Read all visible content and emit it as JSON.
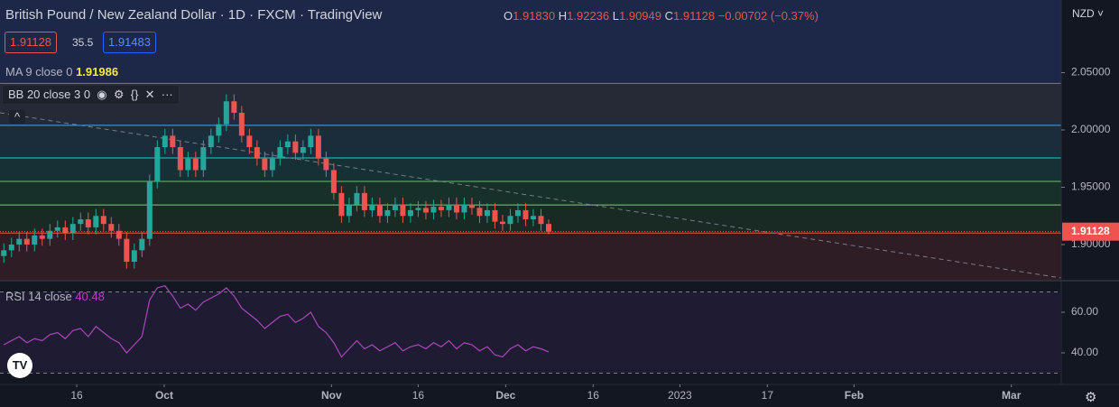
{
  "header": {
    "title": "British Pound / New Zealand Dollar · 1D · FXCM · TradingView",
    "o_label": "O",
    "o": "1.91830",
    "h_label": "H",
    "h": "1.92236",
    "l_label": "L",
    "l": "1.90949",
    "c_label": "C",
    "c": "1.91128",
    "change": "−0.00702 (−0.37%)",
    "sell": "1.91128",
    "spread": "35.5",
    "buy": "1.91483",
    "ma_label": "MA 9 close 0",
    "ma_value": "1.91986",
    "bb_label": "BB 20 close 3 0",
    "currency": "NZD"
  },
  "chart_data": {
    "type": "candlestick",
    "open": [
      1.89,
      1.895,
      1.9,
      1.905,
      1.9,
      1.908,
      1.905,
      1.912,
      1.915,
      1.91,
      1.918,
      1.922,
      1.915,
      1.925,
      1.918,
      1.912,
      1.905,
      1.885,
      1.895,
      1.905,
      1.955,
      1.985,
      1.995,
      1.985,
      1.965,
      1.975,
      1.965,
      1.985,
      1.995,
      2.005,
      2.025,
      2.015,
      1.995,
      1.985,
      1.975,
      1.965,
      1.975,
      1.985,
      1.99,
      1.98,
      1.985,
      1.995,
      1.975,
      1.965,
      1.945,
      1.925,
      1.935,
      1.945,
      1.93,
      1.935,
      1.925,
      1.93,
      1.935,
      1.925,
      1.93,
      1.932,
      1.928,
      1.933,
      1.93,
      1.935,
      1.928,
      1.935,
      1.932,
      1.925,
      1.93,
      1.92,
      1.918,
      1.925,
      1.93,
      1.922,
      1.925,
      1.918
    ],
    "high": [
      1.901,
      1.906,
      1.911,
      1.911,
      1.914,
      1.914,
      1.918,
      1.921,
      1.921,
      1.924,
      1.928,
      1.928,
      1.931,
      1.931,
      1.924,
      1.918,
      1.911,
      1.901,
      1.911,
      1.961,
      1.991,
      2.001,
      2.001,
      1.991,
      1.981,
      1.981,
      1.991,
      2.001,
      2.011,
      2.031,
      2.031,
      2.021,
      2.001,
      1.991,
      1.981,
      1.981,
      1.991,
      1.996,
      1.996,
      1.991,
      2.001,
      2.001,
      1.981,
      1.971,
      1.951,
      1.941,
      1.951,
      1.951,
      1.941,
      1.941,
      1.936,
      1.941,
      1.941,
      1.936,
      1.938,
      1.938,
      1.939,
      1.939,
      1.941,
      1.941,
      1.941,
      1.941,
      1.938,
      1.936,
      1.936,
      1.926,
      1.931,
      1.936,
      1.936,
      1.931,
      1.931,
      1.922
    ],
    "low": [
      1.884,
      1.889,
      1.894,
      1.894,
      1.894,
      1.899,
      1.899,
      1.906,
      1.904,
      1.904,
      1.912,
      1.909,
      1.909,
      1.912,
      1.906,
      1.899,
      1.879,
      1.879,
      1.889,
      1.899,
      1.949,
      1.979,
      1.979,
      1.959,
      1.959,
      1.959,
      1.959,
      1.979,
      1.989,
      1.999,
      2.009,
      1.989,
      1.979,
      1.969,
      1.959,
      1.959,
      1.969,
      1.979,
      1.974,
      1.974,
      1.979,
      1.969,
      1.959,
      1.939,
      1.919,
      1.919,
      1.929,
      1.924,
      1.924,
      1.919,
      1.919,
      1.924,
      1.919,
      1.919,
      1.924,
      1.922,
      1.922,
      1.924,
      1.924,
      1.922,
      1.922,
      1.926,
      1.919,
      1.919,
      1.914,
      1.912,
      1.912,
      1.919,
      1.916,
      1.916,
      1.912,
      1.909
    ],
    "close": [
      1.895,
      1.9,
      1.905,
      1.9,
      1.908,
      1.905,
      1.912,
      1.915,
      1.91,
      1.918,
      1.922,
      1.915,
      1.925,
      1.918,
      1.912,
      1.905,
      1.885,
      1.895,
      1.905,
      1.955,
      1.985,
      1.995,
      1.985,
      1.965,
      1.975,
      1.965,
      1.985,
      1.995,
      2.005,
      2.025,
      2.015,
      1.995,
      1.985,
      1.975,
      1.965,
      1.975,
      1.985,
      1.99,
      1.98,
      1.985,
      1.995,
      1.975,
      1.965,
      1.945,
      1.925,
      1.935,
      1.945,
      1.93,
      1.935,
      1.925,
      1.93,
      1.935,
      1.925,
      1.93,
      1.932,
      1.928,
      1.933,
      1.93,
      1.935,
      1.928,
      1.935,
      1.932,
      1.925,
      1.93,
      1.92,
      1.918,
      1.925,
      1.93,
      1.922,
      1.925,
      1.918,
      1.91128
    ],
    "up_color": "#26a69a",
    "down_color": "#ef5350",
    "xlim": [
      -0.5,
      137.8
    ],
    "xticks": [
      {
        "value": 9.5,
        "label": "16"
      },
      {
        "value": 20.9,
        "label": "Oct"
      },
      {
        "value": 42.7,
        "label": "Nov"
      },
      {
        "value": 54,
        "label": "16"
      },
      {
        "value": 65.4,
        "label": "Dec"
      },
      {
        "value": 76.8,
        "label": "16"
      },
      {
        "value": 88.1,
        "label": "2023"
      },
      {
        "value": 99.5,
        "label": "17"
      },
      {
        "value": 110.8,
        "label": "Feb"
      },
      {
        "value": 131.3,
        "label": "Mar"
      }
    ],
    "ylim": [
      1.8693,
      2.1134
    ],
    "yticks": [
      {
        "value": 1.9,
        "label": "1.90000"
      },
      {
        "value": 1.95,
        "label": "1.95000"
      },
      {
        "value": 2.0,
        "label": "2.00000"
      },
      {
        "value": 2.05,
        "label": "2.05000"
      }
    ],
    "top_fill": "#1d2748",
    "levels": [
      {
        "value": 2.0407,
        "color": "#787b86",
        "fill": "#262a36"
      },
      {
        "value": 2.004,
        "color": "#42a5f5",
        "fill": "#1b2c3b"
      },
      {
        "value": 1.9756,
        "color": "#26c6da",
        "fill": "#163136"
      },
      {
        "value": 1.9551,
        "color": "#66bb6a",
        "fill": "#18302a"
      },
      {
        "value": 1.9346,
        "color": "#81c784",
        "fill": "#192a24"
      },
      {
        "value": 1.91,
        "color": "#ef5350",
        "fill": "#2f1d25"
      }
    ],
    "last_price": 1.91128,
    "last_price_label": "1.91128",
    "rsi": {
      "label": "RSI 14 close",
      "value_label": "40.48",
      "color": "#ab47bc",
      "fill": "#1f1b33",
      "ylim": [
        24.9,
        75.1
      ],
      "yticks": [
        {
          "value": 60,
          "label": "60.00"
        },
        {
          "value": 40,
          "label": "40.00"
        }
      ],
      "band": [
        30,
        70
      ],
      "values": [
        44,
        46,
        48,
        45,
        47,
        46,
        49,
        50,
        47,
        51,
        52,
        48,
        53,
        50,
        47,
        45,
        40,
        44,
        48,
        66,
        72,
        73,
        68,
        62,
        64,
        61,
        65,
        67,
        69,
        72,
        68,
        62,
        59,
        56,
        52,
        55,
        58,
        59,
        55,
        57,
        60,
        53,
        50,
        45,
        38,
        42,
        46,
        42,
        44,
        41,
        43,
        45,
        41,
        43,
        44,
        42,
        45,
        43,
        46,
        42,
        45,
        44,
        41,
        43,
        39,
        38,
        42,
        44,
        41,
        43,
        42,
        40.48
      ]
    }
  }
}
